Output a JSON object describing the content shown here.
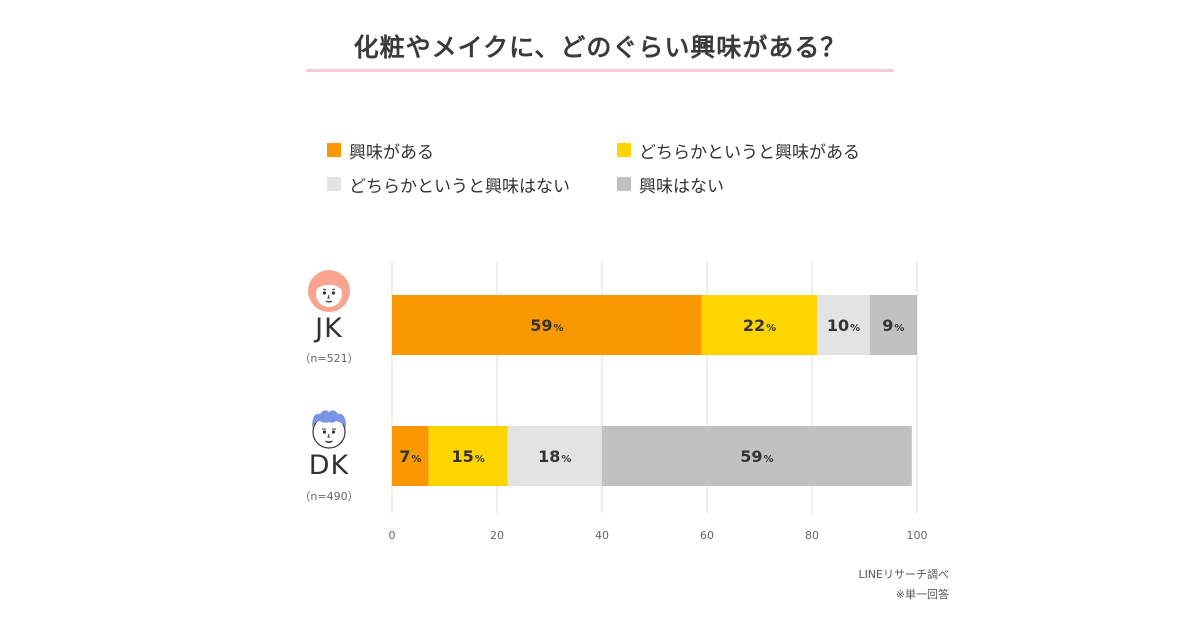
{
  "title": "化粧やメイクに、どのぐらい興味がある？",
  "legend": [
    {
      "label": "興味がある",
      "color": "#f99800"
    },
    {
      "label": "どちらかというと興味がある",
      "color": "#ffd500"
    },
    {
      "label": "どちらかというと興味はない",
      "color": "#e3e3e3"
    },
    {
      "label": "興味はない",
      "color": "#c1c1c1"
    }
  ],
  "groups": [
    {
      "label": "JK",
      "n": "（n=521）"
    },
    {
      "label": "DK",
      "n": "（n=490）"
    }
  ],
  "footer": {
    "source": "LINEリサーチ調べ",
    "note": "※単一回答"
  },
  "chart_data": {
    "type": "bar",
    "orientation": "horizontal",
    "stacked": true,
    "categories": [
      "JK",
      "DK"
    ],
    "series": [
      {
        "name": "興味がある",
        "values": [
          59,
          7
        ]
      },
      {
        "name": "どちらかというと興味がある",
        "values": [
          22,
          15
        ]
      },
      {
        "name": "どちらかというと興味はない",
        "values": [
          10,
          18
        ]
      },
      {
        "name": "興味はない",
        "values": [
          9,
          59
        ]
      }
    ],
    "unit": "%",
    "xlim": [
      0,
      100
    ],
    "xticks": [
      0,
      20,
      40,
      60,
      80,
      100
    ],
    "grid": true,
    "legend_position": "top"
  }
}
